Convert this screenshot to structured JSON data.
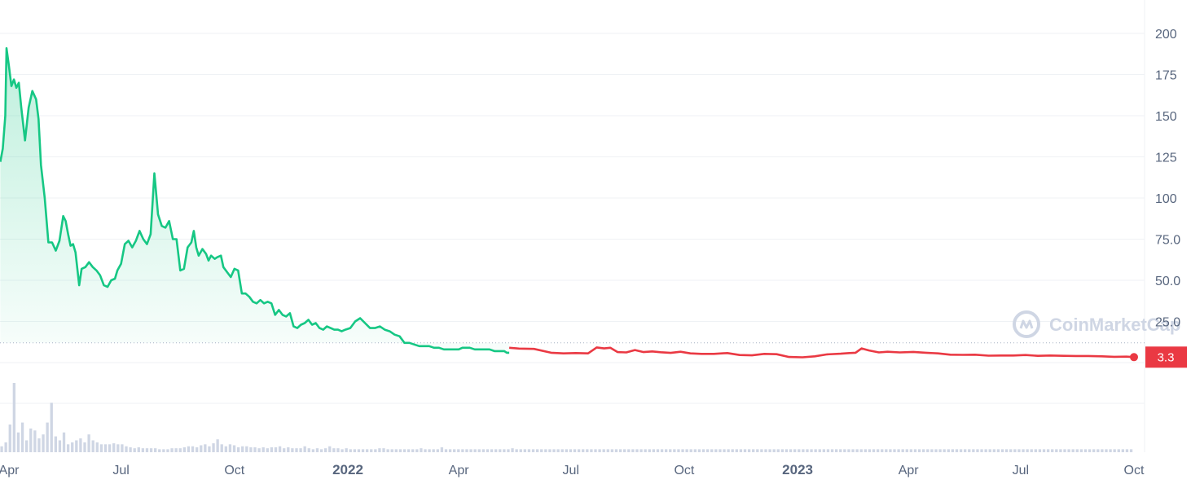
{
  "chart_data": {
    "type": "line",
    "title": "",
    "xlabel": "",
    "ylabel": "",
    "ylim": [
      0,
      215
    ],
    "y_ticks": [
      "25.0",
      "50.0",
      "75.0",
      "100",
      "125",
      "150",
      "175",
      "200"
    ],
    "y_tick_values": [
      25,
      50,
      75,
      100,
      125,
      150,
      175,
      200
    ],
    "x_ticks": [
      {
        "label": "Apr",
        "date": "2021-04-01",
        "bold": false
      },
      {
        "label": "Jul",
        "date": "2021-07-01",
        "bold": false
      },
      {
        "label": "Oct",
        "date": "2021-10-01",
        "bold": false
      },
      {
        "label": "2022",
        "date": "2022-01-01",
        "bold": true
      },
      {
        "label": "Apr",
        "date": "2022-04-01",
        "bold": false
      },
      {
        "label": "Jul",
        "date": "2022-07-01",
        "bold": false
      },
      {
        "label": "Oct",
        "date": "2022-10-01",
        "bold": false
      },
      {
        "label": "2023",
        "date": "2023-01-01",
        "bold": true
      },
      {
        "label": "Apr",
        "date": "2023-04-01",
        "bold": false
      },
      {
        "label": "Jul",
        "date": "2023-07-01",
        "bold": false
      },
      {
        "label": "Oct",
        "date": "2023-10-01",
        "bold": false
      }
    ],
    "x_range": [
      "2021-04-01",
      "2023-10-01"
    ],
    "current_price": 3.3,
    "current_price_label": "3.3",
    "reference_price": 12,
    "grid": true,
    "legend": "none",
    "colors": {
      "up": "#16c784",
      "down": "#ea3943",
      "volume": "#cfd6e4",
      "grid": "#eff2f5",
      "axis_text": "#58667e"
    },
    "series": [
      {
        "x": [
          "2021-03-25",
          "2021-03-27",
          "2021-03-29",
          "2021-03-30",
          "2021-04-01",
          "2021-04-03",
          "2021-04-05",
          "2021-04-07",
          "2021-04-09",
          "2021-04-11",
          "2021-04-14",
          "2021-04-17",
          "2021-04-20",
          "2021-04-23",
          "2021-04-25",
          "2021-04-27",
          "2021-04-30",
          "2021-05-03",
          "2021-05-06",
          "2021-05-09",
          "2021-05-12",
          "2021-05-15",
          "2021-05-17",
          "2021-05-19",
          "2021-05-21",
          "2021-05-23",
          "2021-05-25",
          "2021-05-28",
          "2021-05-30",
          "2021-06-02",
          "2021-06-05",
          "2021-06-08",
          "2021-06-11",
          "2021-06-14",
          "2021-06-17",
          "2021-06-20",
          "2021-06-23",
          "2021-06-26",
          "2021-06-28",
          "2021-07-01",
          "2021-07-04",
          "2021-07-07",
          "2021-07-10",
          "2021-07-13",
          "2021-07-16",
          "2021-07-19",
          "2021-07-22",
          "2021-07-25",
          "2021-07-28",
          "2021-07-31",
          "2021-08-03",
          "2021-08-06",
          "2021-08-09",
          "2021-08-12",
          "2021-08-15",
          "2021-08-18",
          "2021-08-21",
          "2021-08-24",
          "2021-08-27",
          "2021-08-29",
          "2021-08-31",
          "2021-09-02",
          "2021-09-05",
          "2021-09-08",
          "2021-09-10",
          "2021-09-12",
          "2021-09-15",
          "2021-09-17",
          "2021-09-20",
          "2021-09-22",
          "2021-09-25",
          "2021-09-28",
          "2021-10-01",
          "2021-10-04",
          "2021-10-07",
          "2021-10-10",
          "2021-10-13",
          "2021-10-16",
          "2021-10-19",
          "2021-10-22",
          "2021-10-25",
          "2021-10-28",
          "2021-10-31",
          "2021-11-03",
          "2021-11-06",
          "2021-11-09",
          "2021-11-12",
          "2021-11-15",
          "2021-11-18",
          "2021-11-21",
          "2021-11-24",
          "2021-11-27",
          "2021-11-30",
          "2021-12-03",
          "2021-12-06",
          "2021-12-09",
          "2021-12-12",
          "2021-12-15",
          "2021-12-18",
          "2021-12-21",
          "2021-12-24",
          "2021-12-27",
          "2021-12-30",
          "2022-01-03",
          "2022-01-07",
          "2022-01-11",
          "2022-01-15",
          "2022-01-19",
          "2022-01-23",
          "2022-01-27",
          "2022-01-31",
          "2022-02-04",
          "2022-02-08",
          "2022-02-12",
          "2022-02-16",
          "2022-02-20",
          "2022-02-24",
          "2022-02-28",
          "2022-03-04",
          "2022-03-08",
          "2022-03-12",
          "2022-03-16",
          "2022-03-20",
          "2022-03-24",
          "2022-03-28",
          "2022-04-01",
          "2022-04-04",
          "2022-04-07",
          "2022-04-10",
          "2022-04-14",
          "2022-04-18",
          "2022-04-22",
          "2022-04-26",
          "2022-04-30",
          "2022-05-04",
          "2022-05-08",
          "2022-05-10",
          "2022-05-12"
        ],
        "values": [
          122,
          130,
          150,
          191,
          180,
          168,
          172,
          167,
          170,
          155,
          135,
          155,
          165,
          160,
          148,
          120,
          100,
          73,
          73,
          68,
          74,
          89,
          86,
          78,
          71,
          72,
          67,
          47,
          57,
          58,
          61,
          58,
          56,
          53,
          47,
          46,
          50,
          51,
          56,
          60,
          72,
          74,
          70,
          74,
          80,
          75,
          72,
          78,
          115,
          90,
          83,
          82,
          86,
          75,
          75,
          56,
          57,
          70,
          73,
          80,
          70,
          65,
          69,
          66,
          62,
          65,
          63,
          64,
          65,
          58,
          55,
          52,
          57,
          56,
          42,
          42,
          40,
          37,
          36,
          38,
          36,
          37,
          36,
          29,
          32,
          29,
          28,
          30,
          22,
          21,
          23,
          24,
          26,
          23,
          24,
          21,
          20,
          22,
          21,
          20,
          20,
          19,
          20,
          21,
          25,
          27,
          24,
          21,
          21,
          22,
          20,
          19,
          17,
          16,
          12,
          12,
          11,
          10,
          10,
          10,
          9,
          9,
          8,
          8,
          8,
          8,
          9,
          9,
          9,
          8,
          8,
          8,
          8,
          7,
          7,
          7,
          6,
          6
        ]
      },
      {
        "x": [
          "2022-05-12",
          "2022-05-20",
          "2022-06-01",
          "2022-06-15",
          "2022-06-25",
          "2022-07-05",
          "2022-07-15",
          "2022-07-22",
          "2022-07-28",
          "2022-08-02",
          "2022-08-08",
          "2022-08-15",
          "2022-08-22",
          "2022-08-29",
          "2022-09-05",
          "2022-09-12",
          "2022-09-20",
          "2022-09-28",
          "2022-10-06",
          "2022-10-15",
          "2022-10-25",
          "2022-11-05",
          "2022-11-15",
          "2022-11-25",
          "2022-12-05",
          "2022-12-15",
          "2022-12-25",
          "2023-01-05",
          "2023-01-15",
          "2023-01-25",
          "2023-02-05",
          "2023-02-12",
          "2023-02-17",
          "2023-02-22",
          "2023-02-28",
          "2023-03-08",
          "2023-03-15",
          "2023-03-25",
          "2023-04-05",
          "2023-04-15",
          "2023-04-25",
          "2023-05-05",
          "2023-05-15",
          "2023-05-25",
          "2023-06-05",
          "2023-06-15",
          "2023-06-25",
          "2023-07-05",
          "2023-07-15",
          "2023-07-25",
          "2023-08-05",
          "2023-08-15",
          "2023-08-25",
          "2023-09-05",
          "2023-09-15",
          "2023-09-25",
          "2023-10-01"
        ],
        "values": [
          9,
          8.5,
          8.3,
          6,
          5.6,
          5.8,
          5.6,
          9.2,
          8.6,
          9,
          6.4,
          6.2,
          7.6,
          6.4,
          6.8,
          6.3,
          5.9,
          6.6,
          5.6,
          5.3,
          5.3,
          5.8,
          4.6,
          4.4,
          5.3,
          5.1,
          3.4,
          3.2,
          3.8,
          5,
          5.4,
          5.8,
          6,
          8.6,
          7.4,
          6.2,
          6.6,
          6.2,
          6.5,
          6,
          5.6,
          4.8,
          4.7,
          4.8,
          4.2,
          4.3,
          4.3,
          4.6,
          4.1,
          4.3,
          4.1,
          4,
          4,
          3.8,
          3.5,
          3.6,
          3.3
        ]
      }
    ],
    "volume_note": "relative volume bars",
    "volume": {
      "x_start": "2021-03-25",
      "x_end": "2023-10-01",
      "values": [
        6,
        10,
        28,
        70,
        20,
        30,
        12,
        24,
        22,
        14,
        18,
        30,
        50,
        16,
        12,
        20,
        8,
        10,
        12,
        14,
        10,
        18,
        12,
        10,
        8,
        8,
        8,
        9,
        8,
        8,
        6,
        5,
        4,
        5,
        4,
        4,
        4,
        4,
        3,
        3,
        3,
        4,
        4,
        4,
        5,
        6,
        6,
        5,
        7,
        8,
        6,
        9,
        13,
        8,
        6,
        8,
        7,
        5,
        6,
        6,
        5,
        5,
        4,
        5,
        4,
        5,
        5,
        6,
        4,
        5,
        4,
        4,
        4,
        6,
        4,
        3,
        4,
        3,
        4,
        6,
        4,
        4,
        3,
        4,
        3,
        3,
        3,
        3,
        3,
        3,
        3,
        4,
        4,
        3,
        3,
        3,
        3,
        3,
        3,
        3,
        3,
        4,
        3,
        3,
        3,
        3,
        5,
        3,
        3,
        3,
        3,
        3,
        3,
        3,
        3,
        3,
        3,
        3,
        3,
        3,
        3,
        3,
        3,
        4,
        3,
        3,
        3,
        3,
        3,
        3,
        3,
        3,
        3,
        3,
        3,
        3,
        3,
        3,
        3,
        3,
        3,
        3,
        3,
        3,
        3,
        3,
        3,
        3,
        3,
        3,
        3,
        3,
        3,
        3,
        3,
        3,
        3,
        3,
        3,
        3,
        3,
        3,
        3,
        3,
        3,
        3,
        3,
        3,
        3,
        3,
        3,
        3,
        3,
        3,
        3,
        3,
        3,
        3,
        3,
        3,
        3,
        3,
        3,
        3,
        3,
        3,
        3,
        3,
        3,
        3,
        3,
        3,
        3,
        3,
        3,
        3,
        3,
        3,
        3,
        3,
        3,
        3,
        3,
        3,
        3,
        3,
        3,
        3,
        3,
        3,
        3,
        3,
        3,
        3,
        3,
        3,
        3,
        3,
        3,
        3,
        3,
        3,
        3,
        3,
        3,
        3,
        3,
        3,
        3,
        3,
        3,
        3,
        3,
        3,
        3,
        3,
        3,
        3,
        3,
        3,
        3,
        3,
        3,
        3,
        3,
        3,
        3,
        3,
        3,
        3,
        3,
        3,
        3,
        3,
        3,
        3,
        3,
        3,
        3,
        3,
        3,
        3,
        3,
        3,
        3,
        3,
        3,
        3,
        3,
        3,
        3,
        3,
        3
      ]
    }
  },
  "watermark": {
    "text": "CoinMarketCap",
    "icon": "coinmarketcap-logo-icon"
  }
}
